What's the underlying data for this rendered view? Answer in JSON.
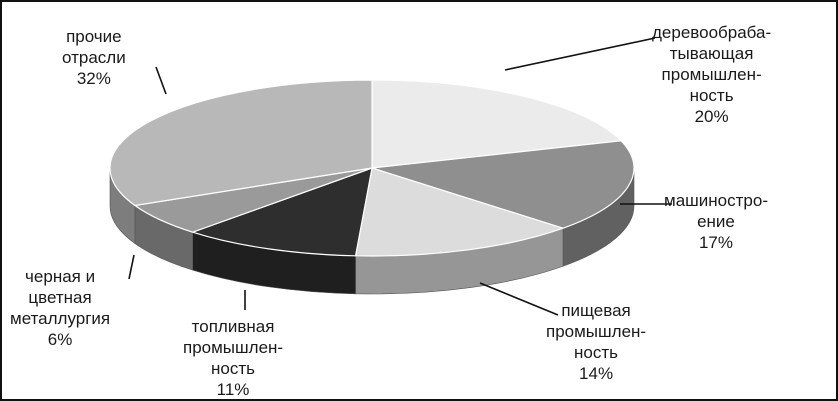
{
  "chart_data": {
    "type": "pie",
    "style": "3d",
    "title": "",
    "start_angle_deg": 0,
    "direction": "clockwise",
    "slices": [
      {
        "label_lines": [
          "деревообраба-",
          "тывающая",
          "промышлен-",
          "ность"
        ],
        "value": 20,
        "value_label": "20%",
        "color": "#ebebeb"
      },
      {
        "label_lines": [
          "машиностро-",
          "ение"
        ],
        "value": 17,
        "value_label": "17%",
        "color": "#8f8f8f"
      },
      {
        "label_lines": [
          "пищевая",
          "промышлен-",
          "ность"
        ],
        "value": 14,
        "value_label": "14%",
        "color": "#dcdcdc"
      },
      {
        "label_lines": [
          "топливная",
          "промышлен-",
          "ность"
        ],
        "value": 11,
        "value_label": "11%",
        "color": "#2e2e2e"
      },
      {
        "label_lines": [
          "черная и",
          "цветная",
          "металлургия"
        ],
        "value": 6,
        "value_label": "6%",
        "color": "#9a9a9a"
      },
      {
        "label_lines": [
          "прочие",
          "отрасли"
        ],
        "value": 32,
        "value_label": "32%",
        "color": "#b8b8b8"
      }
    ]
  }
}
